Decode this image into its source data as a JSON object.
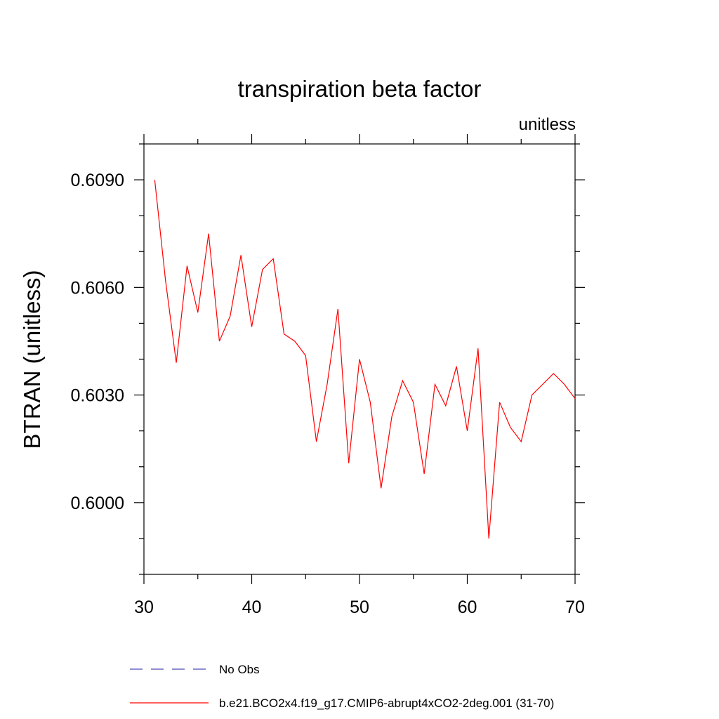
{
  "chart_data": {
    "type": "line",
    "title": "transpiration beta factor",
    "units_label": "unitless",
    "ylabel": "BTRAN  (unitless)",
    "xlabel": "",
    "xlim": [
      30,
      70
    ],
    "ylim": [
      0.598,
      0.61
    ],
    "x_ticks": [
      30,
      40,
      50,
      60,
      70
    ],
    "x_tick_labels": [
      "30",
      "40",
      "50",
      "60",
      "70"
    ],
    "y_ticks": [
      0.6,
      0.603,
      0.606,
      0.609
    ],
    "y_tick_labels": [
      "0.6000",
      "0.6030",
      "0.6060",
      "0.6090"
    ],
    "grid": false,
    "legend_position": "bottom",
    "legend": [
      {
        "label": "No Obs",
        "color": "#4b4bb4",
        "dash": "dashed"
      },
      {
        "label": "b.e21.BCO2x4.f19_g17.CMIP6-abrupt4xCO2-2deg.001 (31-70)",
        "color": "#ff0000",
        "dash": "solid"
      }
    ],
    "series": [
      {
        "name": "b.e21.BCO2x4.f19_g17.CMIP6-abrupt4xCO2-2deg.001 (31-70)",
        "color": "#ff0000",
        "x": [
          31,
          32,
          33,
          34,
          35,
          36,
          37,
          38,
          39,
          40,
          41,
          42,
          43,
          44,
          45,
          46,
          47,
          48,
          49,
          50,
          51,
          52,
          53,
          54,
          55,
          56,
          57,
          58,
          59,
          60,
          61,
          62,
          63,
          64,
          65,
          66,
          67,
          68,
          69,
          70
        ],
        "values": [
          0.609,
          0.6062,
          0.6039,
          0.6066,
          0.6053,
          0.6075,
          0.6045,
          0.6052,
          0.6069,
          0.6049,
          0.6065,
          0.6068,
          0.6047,
          0.6045,
          0.6041,
          0.6017,
          0.6033,
          0.6054,
          0.6011,
          0.604,
          0.6028,
          0.6004,
          0.6024,
          0.6034,
          0.6028,
          0.6008,
          0.6033,
          0.6027,
          0.6038,
          0.602,
          0.6043,
          0.599,
          0.6028,
          0.6021,
          0.6017,
          0.603,
          0.6033,
          0.6036,
          0.6033,
          0.6029
        ]
      }
    ]
  }
}
